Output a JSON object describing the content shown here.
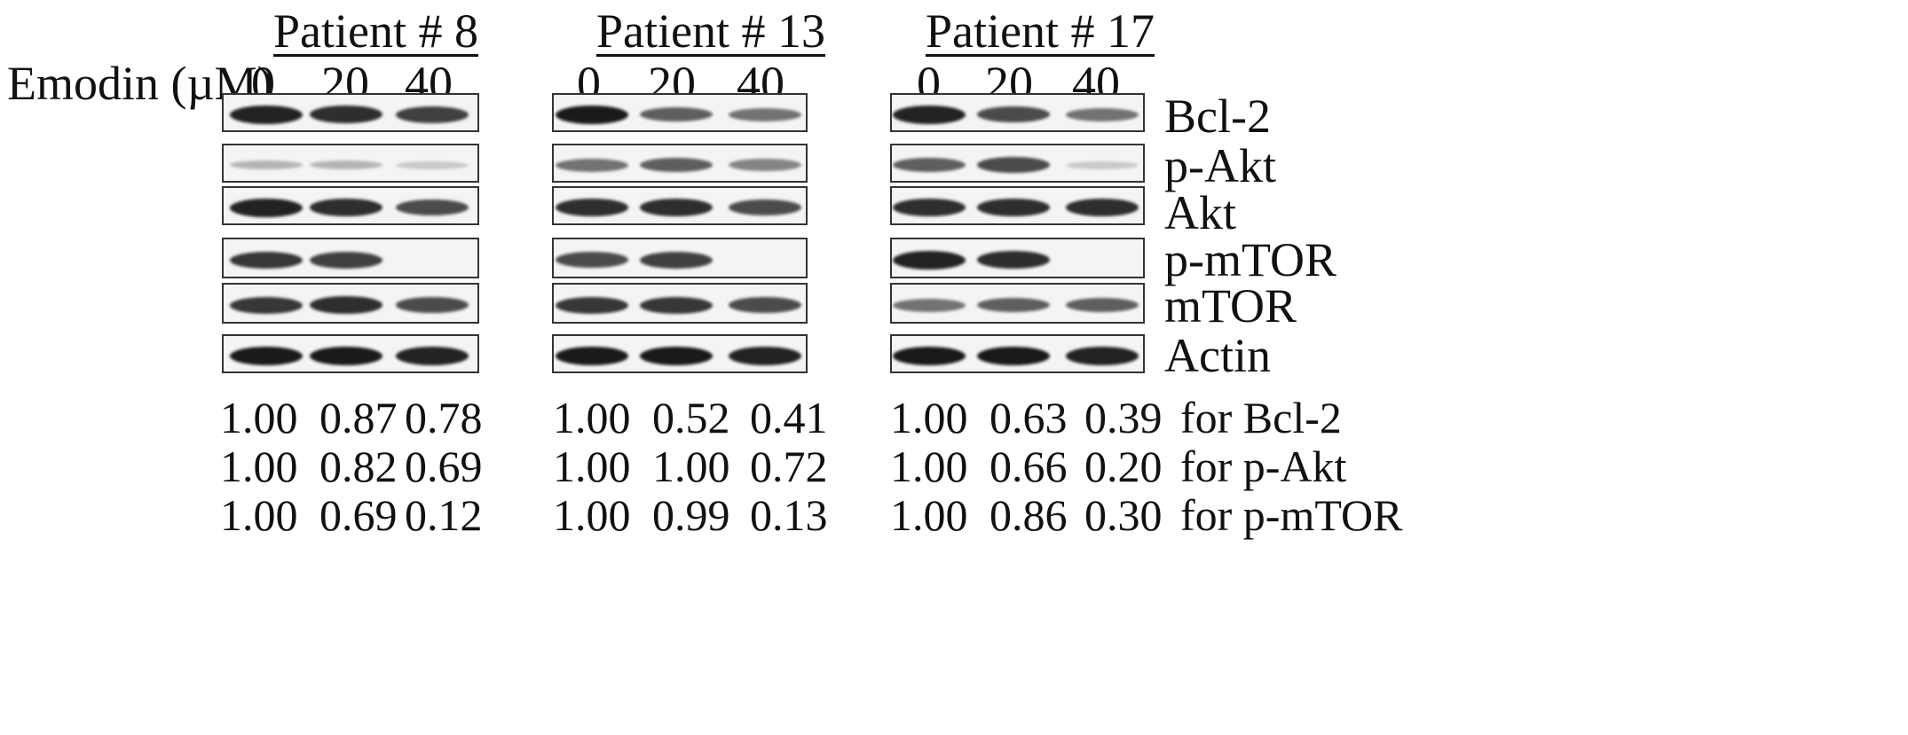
{
  "figure": {
    "treatment_label": "Emodin (µM)",
    "patients": [
      {
        "name": "Patient # 8",
        "concentrations": [
          "0",
          "20",
          "40"
        ],
        "quant": [
          [
            "1.00",
            "0.87",
            "0.78"
          ],
          [
            "1.00",
            "0.82",
            "0.69"
          ],
          [
            "1.00",
            "0.69",
            "0.12"
          ]
        ]
      },
      {
        "name": "Patient # 13",
        "concentrations": [
          "0",
          "20",
          "40"
        ],
        "quant": [
          [
            "1.00",
            "0.52",
            "0.41"
          ],
          [
            "1.00",
            "1.00",
            "0.72"
          ],
          [
            "1.00",
            "0.99",
            "0.13"
          ]
        ]
      },
      {
        "name": "Patient # 17",
        "concentrations": [
          "0",
          "20",
          "40"
        ],
        "quant": [
          [
            "1.00",
            "0.63",
            "0.39"
          ],
          [
            "1.00",
            "0.66",
            "0.20"
          ],
          [
            "1.00",
            "0.86",
            "0.30"
          ]
        ]
      }
    ],
    "proteins": [
      "Bcl-2",
      "p-Akt",
      "Akt",
      "p-mTOR",
      "mTOR",
      "Actin"
    ],
    "quant_labels": [
      "for Bcl-2",
      "for p-Akt",
      "for p-mTOR"
    ],
    "band_intensity": {
      "patient_8": {
        "Bcl-2": [
          0.9,
          0.85,
          0.75
        ],
        "p-Akt": [
          0.15,
          0.15,
          0.05
        ],
        "Akt": [
          0.9,
          0.85,
          0.7
        ],
        "p-mTOR": [
          0.8,
          0.75,
          0.0
        ],
        "mTOR": [
          0.8,
          0.85,
          0.7
        ],
        "Actin": [
          0.95,
          0.95,
          0.9
        ]
      },
      "patient_13": {
        "Bcl-2": [
          0.95,
          0.6,
          0.5
        ],
        "p-Akt": [
          0.5,
          0.6,
          0.4
        ],
        "Akt": [
          0.85,
          0.85,
          0.7
        ],
        "p-mTOR": [
          0.7,
          0.75,
          0.0
        ],
        "mTOR": [
          0.8,
          0.8,
          0.7
        ],
        "Actin": [
          0.95,
          0.95,
          0.9
        ]
      },
      "patient_17": {
        "Bcl-2": [
          0.9,
          0.7,
          0.5
        ],
        "p-Akt": [
          0.6,
          0.7,
          0.05
        ],
        "Akt": [
          0.85,
          0.85,
          0.85
        ],
        "p-mTOR": [
          0.9,
          0.85,
          0.0
        ],
        "mTOR": [
          0.5,
          0.6,
          0.6
        ],
        "Actin": [
          0.95,
          0.95,
          0.9
        ]
      }
    }
  }
}
